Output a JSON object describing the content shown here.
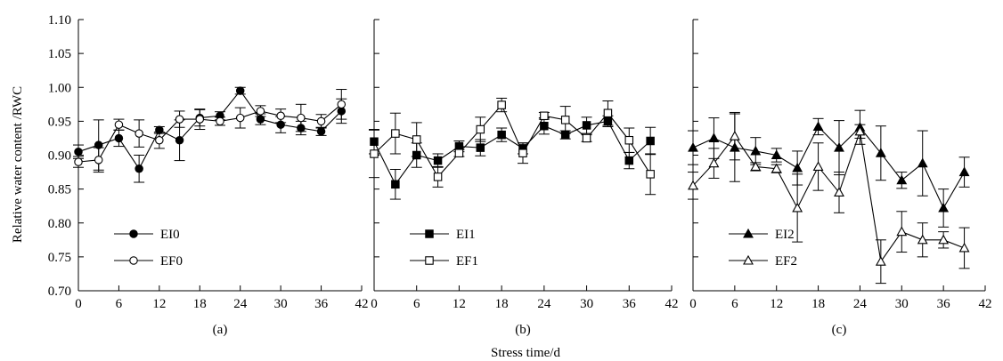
{
  "chart_data": [
    {
      "type": "line",
      "panel_label": "(a)",
      "x": [
        0,
        3,
        6,
        9,
        12,
        15,
        18,
        21,
        24,
        27,
        30,
        33,
        36,
        39
      ],
      "xlim": [
        0,
        42
      ],
      "xticks": [
        "0",
        "6",
        "12",
        "18",
        "24",
        "30",
        "36",
        "42"
      ],
      "ylim": [
        0.7,
        1.1
      ],
      "yticks": [
        "0.70",
        "0.75",
        "0.80",
        "0.85",
        "0.90",
        "0.95",
        "1.00",
        "1.05",
        "1.10"
      ],
      "legend_position": "bottom-left",
      "series": [
        {
          "name": "EI0",
          "marker": "filled-circle",
          "values": [
            0.905,
            0.915,
            0.925,
            0.88,
            0.937,
            0.922,
            0.955,
            0.958,
            0.995,
            0.953,
            0.945,
            0.94,
            0.935,
            0.965
          ],
          "errors": [
            0.01,
            0.037,
            0.012,
            0.02,
            0.005,
            0.03,
            0.012,
            0.006,
            0.005,
            0.008,
            0.012,
            0.01,
            0.006,
            0.018
          ]
        },
        {
          "name": "EF0",
          "marker": "open-circle",
          "values": [
            0.89,
            0.893,
            0.945,
            0.932,
            0.922,
            0.953,
            0.953,
            0.95,
            0.955,
            0.965,
            0.958,
            0.955,
            0.95,
            0.975
          ],
          "errors": [
            0.008,
            0.018,
            0.008,
            0.02,
            0.012,
            0.012,
            0.015,
            0.006,
            0.015,
            0.008,
            0.01,
            0.02,
            0.01,
            0.022
          ]
        }
      ]
    },
    {
      "type": "line",
      "panel_label": "(b)",
      "x": [
        0,
        3,
        6,
        9,
        12,
        15,
        18,
        21,
        24,
        27,
        30,
        33,
        36,
        39
      ],
      "xlim": [
        0,
        42
      ],
      "xticks": [
        "0",
        "6",
        "12",
        "18",
        "24",
        "30",
        "36",
        "42"
      ],
      "ylim": [
        0.7,
        1.1
      ],
      "legend_position": "bottom-left",
      "series": [
        {
          "name": "EI1",
          "marker": "filled-square",
          "values": [
            0.92,
            0.857,
            0.9,
            0.892,
            0.913,
            0.911,
            0.93,
            0.91,
            0.943,
            0.93,
            0.944,
            0.95,
            0.892,
            0.921
          ],
          "errors": [
            0.018,
            0.022,
            0.018,
            0.01,
            0.008,
            0.012,
            0.01,
            0.008,
            0.012,
            0.006,
            0.012,
            0.008,
            0.012,
            0.02
          ]
        },
        {
          "name": "EF1",
          "marker": "open-square",
          "values": [
            0.902,
            0.932,
            0.923,
            0.868,
            0.903,
            0.938,
            0.974,
            0.903,
            0.958,
            0.952,
            0.925,
            0.962,
            0.922,
            0.872
          ],
          "errors": [
            0.035,
            0.03,
            0.025,
            0.015,
            0.005,
            0.018,
            0.01,
            0.015,
            0.005,
            0.02,
            0.005,
            0.018,
            0.018,
            0.03
          ]
        }
      ]
    },
    {
      "type": "line",
      "panel_label": "(c)",
      "x": [
        0,
        3,
        6,
        9,
        12,
        15,
        18,
        21,
        24,
        27,
        30,
        33,
        36,
        39
      ],
      "xlim": [
        0,
        42
      ],
      "xticks": [
        "0",
        "6",
        "12",
        "18",
        "24",
        "30",
        "36",
        "42"
      ],
      "ylim": [
        0.7,
        1.1
      ],
      "legend_position": "bottom-left",
      "series": [
        {
          "name": "EI2",
          "marker": "filled-triangle",
          "values": [
            0.911,
            0.925,
            0.911,
            0.906,
            0.9,
            0.881,
            0.942,
            0.911,
            0.941,
            0.903,
            0.863,
            0.888,
            0.822,
            0.875
          ],
          "errors": [
            0.025,
            0.03,
            0.05,
            0.02,
            0.01,
            0.025,
            0.012,
            0.04,
            0.025,
            0.04,
            0.012,
            0.048,
            0.028,
            0.022
          ]
        },
        {
          "name": "EF2",
          "marker": "open-triangle",
          "values": [
            0.855,
            0.888,
            0.928,
            0.883,
            0.88,
            0.822,
            0.883,
            0.845,
            0.935,
            0.743,
            0.787,
            0.775,
            0.775,
            0.763
          ],
          "errors": [
            0.02,
            0.022,
            0.035,
            0.006,
            0.006,
            0.05,
            0.035,
            0.03,
            0.01,
            0.032,
            0.03,
            0.025,
            0.012,
            0.03
          ]
        }
      ]
    }
  ],
  "axes": {
    "ylabel": "Relative water content /RWC",
    "xlabel": "Stress time/d"
  }
}
